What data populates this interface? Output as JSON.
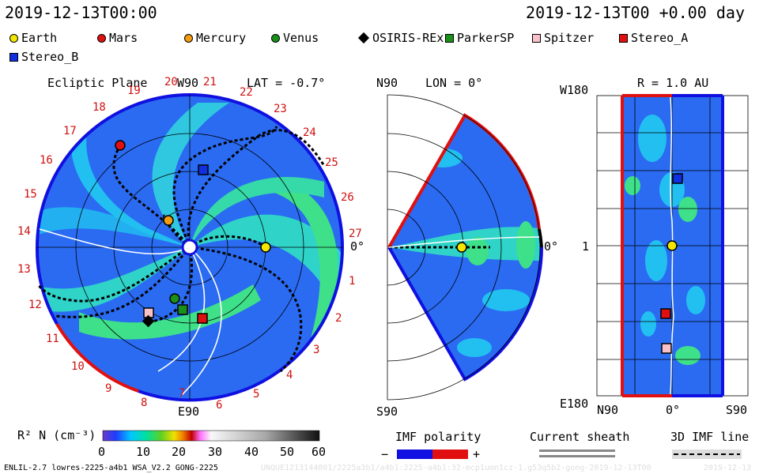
{
  "header": {
    "datetime_left": "2019-12-13T00:00",
    "datetime_right": "2019-12-13T00 +0.00 day"
  },
  "legend": [
    {
      "label": "Earth",
      "shape": "circle",
      "color": "#f4e600"
    },
    {
      "label": "Mars",
      "shape": "circle",
      "color": "#e01010"
    },
    {
      "label": "Mercury",
      "shape": "circle",
      "color": "#f39c12"
    },
    {
      "label": "Venus",
      "shape": "circle",
      "color": "#1a8f1a"
    },
    {
      "label": "OSIRIS-REx",
      "shape": "diamond",
      "color": "#000000"
    },
    {
      "label": "ParkerSP",
      "shape": "square",
      "color": "#1a8f1a"
    },
    {
      "label": "Spitzer",
      "shape": "square",
      "color": "#f8c0c8"
    },
    {
      "label": "Stereo_A",
      "shape": "square",
      "color": "#e01010"
    },
    {
      "label": "Stereo_B",
      "shape": "square",
      "color": "#1030e0"
    }
  ],
  "panel_ecliptic": {
    "title": "Ecliptic Plane",
    "lat": "LAT = -0.7°",
    "top_label": "W90",
    "bottom_label": "E90",
    "right_label": "0°",
    "carrington_numbers": [
      "1",
      "2",
      "3",
      "4",
      "5",
      "6",
      "7",
      "8",
      "9",
      "10",
      "11",
      "12",
      "13",
      "14",
      "15",
      "16",
      "17",
      "18",
      "19",
      "20",
      "21",
      "22",
      "23",
      "24",
      "25",
      "26",
      "27"
    ]
  },
  "panel_meridional": {
    "top_label": "N90",
    "lon": "LON = 0°",
    "right_label": "0°",
    "bottom_label": "S90"
  },
  "panel_radial": {
    "title": "R = 1.0 AU",
    "top_left": "W180",
    "mid_left": "1",
    "bottom_left": "E180",
    "x_left": "N90",
    "x_mid": "0°",
    "x_right": "S90"
  },
  "colorbar": {
    "label": "R² N (cm⁻³)",
    "ticks": [
      "0",
      "10",
      "20",
      "30",
      "40",
      "50",
      "60"
    ]
  },
  "imf_polarity": {
    "title": "IMF polarity",
    "minus": "−",
    "plus": "+"
  },
  "current_sheath": {
    "title": "Current sheath"
  },
  "imf_line": {
    "title": "3D IMF line"
  },
  "footer": {
    "left": "ENLIL-2.7 lowres-2225-a4b1 WSA_V2.2 GONG-2225",
    "middle": "UNQUE1213144801/2225a3b1/a4b1:2225-a4b1:32-mcp1umn1cz-1.g53q5b2-gong-2019-12-13T00",
    "right": "2019-12-13"
  },
  "colors": {
    "polarity_negative": "#1010e0",
    "polarity_positive": "#e01010",
    "sheath": "#888888"
  }
}
